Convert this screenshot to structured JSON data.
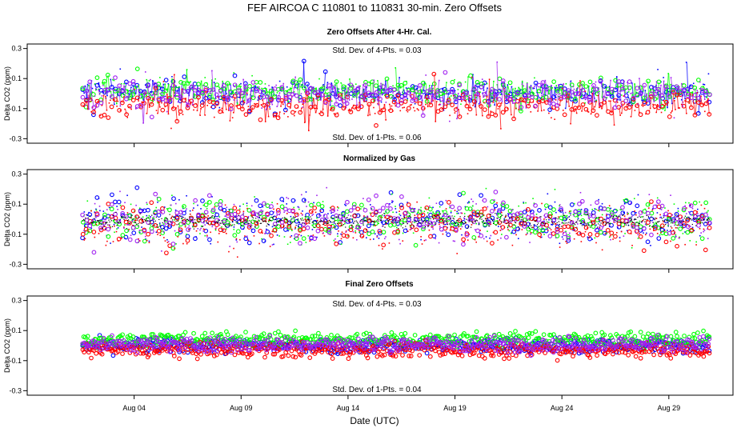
{
  "chart_data": {
    "type": "scatter",
    "title": "FEF   AIRCOA C   110801 to 110831   30-min. Zero Offsets",
    "xlabel": "Date (UTC)",
    "x_range_days": [
      -1.0,
      32.0
    ],
    "data_range_days": [
      1.6,
      30.9
    ],
    "x_ticks": [
      {
        "day": 4,
        "label": "Aug 04"
      },
      {
        "day": 9,
        "label": "Aug 09"
      },
      {
        "day": 14,
        "label": "Aug 14"
      },
      {
        "day": 19,
        "label": "Aug 19"
      },
      {
        "day": 24,
        "label": "Aug 24"
      },
      {
        "day": 29,
        "label": "Aug 29"
      }
    ],
    "series_colors": {
      "gas1": "#ff0000",
      "gas2": "#0000ff",
      "gas3": "#00ff00",
      "gas4": "#a020f0",
      "normalized": "#000000"
    },
    "panels": [
      {
        "id": "after-cal",
        "title": "Zero Offsets After 4-Hr. Cal.",
        "ylabel": "Delta CO2 (ppm)",
        "ylim": [
          -0.33,
          0.33
        ],
        "yticks": [
          "0.3",
          "0.1",
          "-0.1",
          "-0.3"
        ],
        "annotation_top": "Std. Dev. of 4-Pts. =  0.03",
        "annotation_bottom": "Std. Dev. of 1-Pts. =  0.06",
        "series_offsets": [
          -0.08,
          0.0,
          0.02,
          0.0
        ],
        "spread": 0.04,
        "pattern": "spiky"
      },
      {
        "id": "normalized",
        "title": "Normalized by Gas",
        "ylabel": "Delta CO2 (ppm)",
        "ylim": [
          -0.33,
          0.33
        ],
        "yticks": [
          "0.3",
          "0.1",
          "-0.1",
          "-0.3"
        ],
        "series_offsets": [
          -0.04,
          0.0,
          0.0,
          0.0
        ],
        "spread": 0.07,
        "pattern": "normalized"
      },
      {
        "id": "final",
        "title": "Final Zero Offsets",
        "ylabel": "Delta CO2 (ppm)",
        "ylim": [
          -0.33,
          0.33
        ],
        "yticks": [
          "0.3",
          "0.1",
          "-0.1",
          "-0.3"
        ],
        "annotation_top": "Std. Dev. of 4-Pts. =  0.03",
        "annotation_bottom": "Std. Dev. of 1-Pts. =  0.04",
        "series_offsets": [
          -0.03,
          0.0,
          0.04,
          0.01
        ],
        "spread": 0.025,
        "pattern": "dense"
      }
    ]
  }
}
